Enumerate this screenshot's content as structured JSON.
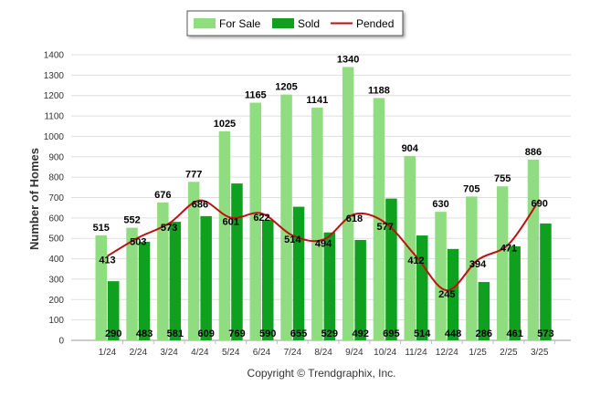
{
  "chart_data": {
    "type": "bar",
    "categories": [
      "1/24",
      "2/24",
      "3/24",
      "4/24",
      "5/24",
      "6/24",
      "7/24",
      "8/24",
      "9/24",
      "10/24",
      "11/24",
      "12/24",
      "1/25",
      "2/25",
      "3/25"
    ],
    "series": [
      {
        "name": "For Sale",
        "kind": "bar",
        "color": "#90dc80",
        "values": [
          515,
          552,
          676,
          777,
          1025,
          1165,
          1205,
          1141,
          1340,
          1188,
          904,
          630,
          705,
          755,
          886
        ]
      },
      {
        "name": "Sold",
        "kind": "bar",
        "color": "#10a020",
        "values": [
          290,
          483,
          581,
          609,
          769,
          590,
          655,
          529,
          492,
          695,
          514,
          448,
          286,
          461,
          573
        ]
      },
      {
        "name": "Pended",
        "kind": "line",
        "color": "#bb1111",
        "values": [
          413,
          503,
          573,
          686,
          601,
          622,
          514,
          494,
          618,
          577,
          412,
          245,
          394,
          471,
          690
        ]
      }
    ],
    "ylabel": "Number of Homes",
    "xlabel": "",
    "ylim": [
      0,
      1400
    ],
    "yticks": [
      0,
      100,
      200,
      300,
      400,
      500,
      600,
      700,
      800,
      900,
      1000,
      1100,
      1200,
      1300,
      1400
    ],
    "grid": true,
    "legend_position": "top-center"
  },
  "footer": {
    "copyright": "Copyright © Trendgraphix, Inc."
  }
}
